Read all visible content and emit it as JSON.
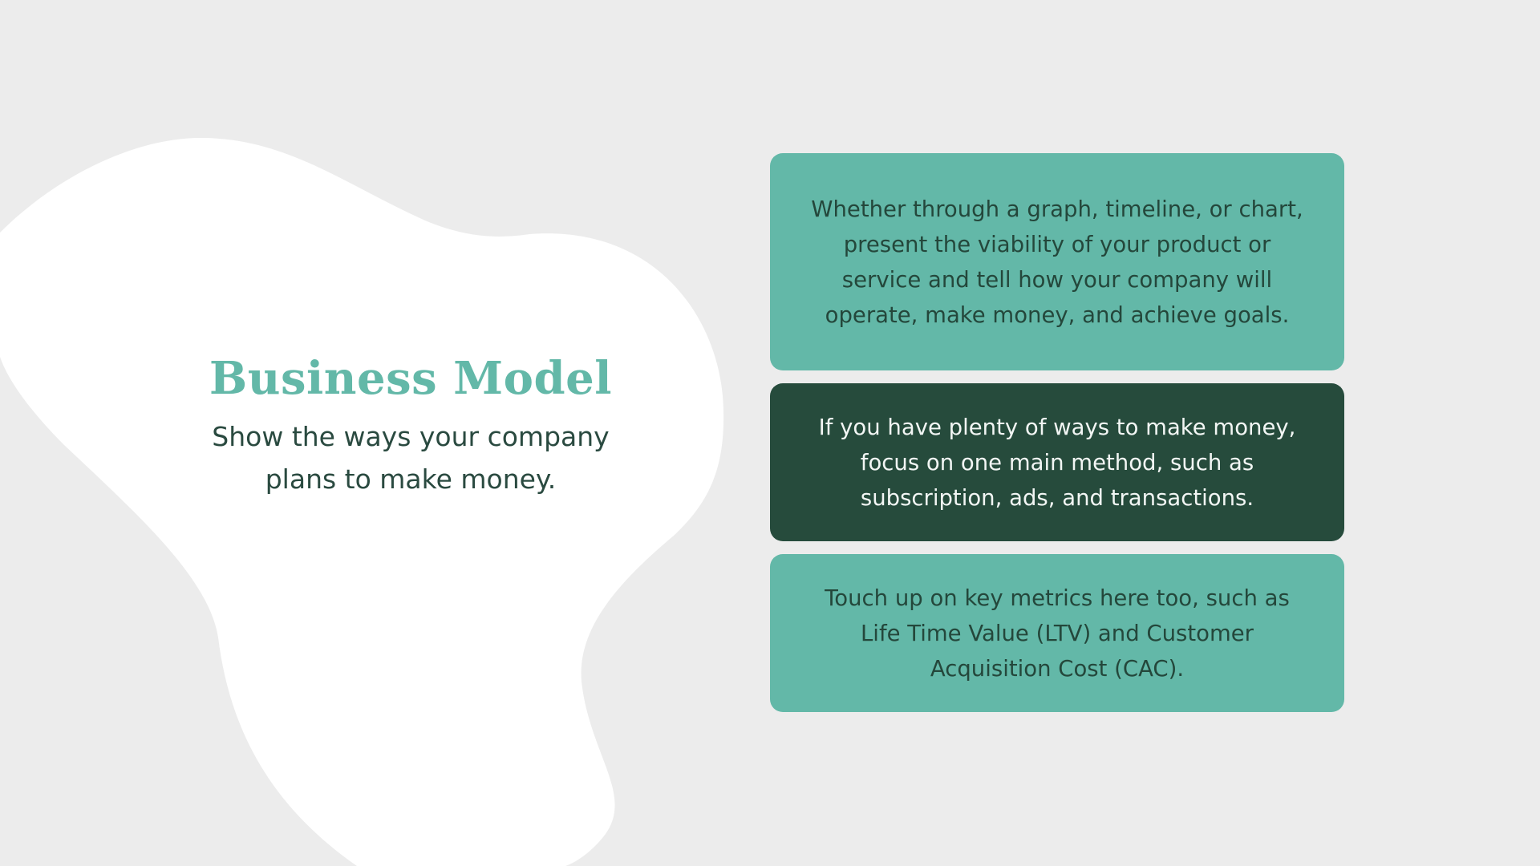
{
  "colors": {
    "background": "#ececec",
    "blob": "#ffffff",
    "accent_teal": "#63b8a8",
    "dark_green": "#264b3c",
    "text_dark": "#2a4a40"
  },
  "slide": {
    "title": "Business Model",
    "subtitle": "Show the ways your company plans to make money."
  },
  "cards": [
    {
      "style": "light",
      "text": "Whether through a graph, timeline, or chart, present the viability of your product or service and tell how your company will operate, make money, and achieve goals."
    },
    {
      "style": "dark",
      "text": "If you have plenty of ways to make money, focus on one main method, such as subscription, ads, and transactions."
    },
    {
      "style": "light",
      "text": "Touch up on key metrics here too, such as Life Time Value (LTV) and Customer Acquisition Cost (CAC)."
    }
  ]
}
